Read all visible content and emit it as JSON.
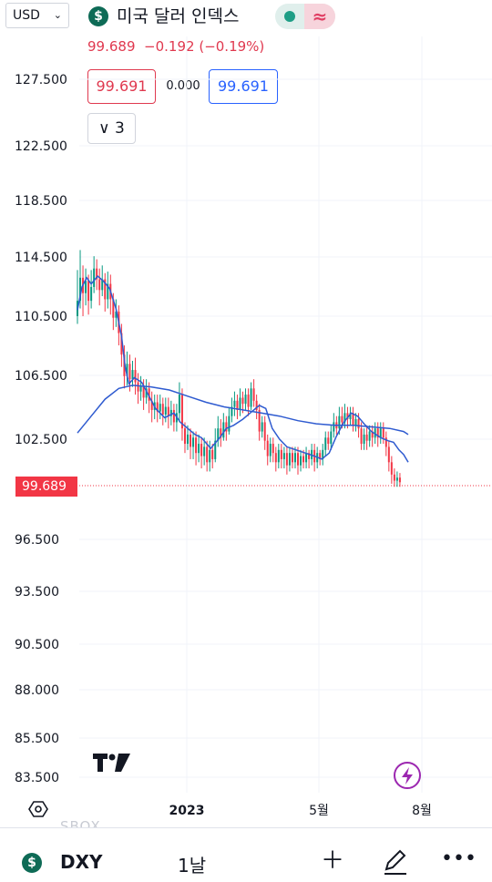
{
  "header": {
    "currency": "USD",
    "symbol_badge": "$",
    "title": "미국 달러 인덱스",
    "status_wave": "≈"
  },
  "quote": {
    "last": "99.689",
    "change": "−0.192",
    "change_pct": "(−0.19%)"
  },
  "trade": {
    "sell": "99.691",
    "spread": "0.000",
    "buy": "99.691"
  },
  "indicators_toggle": {
    "count": "3"
  },
  "chart_data": {
    "type": "candlestick",
    "y_ticks": [
      "127.500",
      "122.500",
      "118.500",
      "114.500",
      "110.500",
      "106.500",
      "102.500",
      "96.500",
      "93.500",
      "90.500",
      "88.000",
      "85.500",
      "83.500"
    ],
    "x_ticks": [
      "2023",
      "5월",
      "8월"
    ],
    "current_price_label": "99.689",
    "ma_fast": [
      [
        0,
        110.9
      ],
      [
        5,
        112.4
      ],
      [
        10,
        113.0
      ],
      [
        15,
        112.6
      ],
      [
        22,
        113.1
      ],
      [
        28,
        112.8
      ],
      [
        35,
        112.3
      ],
      [
        42,
        111.0
      ],
      [
        48,
        109.2
      ],
      [
        52,
        107.2
      ],
      [
        56,
        106.1
      ],
      [
        62,
        106.5
      ],
      [
        70,
        106.2
      ],
      [
        78,
        105.3
      ],
      [
        85,
        104.5
      ],
      [
        95,
        103.9
      ],
      [
        105,
        104.2
      ],
      [
        112,
        103.6
      ],
      [
        120,
        103.2
      ],
      [
        128,
        102.8
      ],
      [
        135,
        102.6
      ],
      [
        145,
        101.9
      ],
      [
        155,
        102.6
      ],
      [
        162,
        103.2
      ],
      [
        170,
        103.4
      ],
      [
        180,
        103.8
      ],
      [
        190,
        104.3
      ],
      [
        198,
        104.7
      ],
      [
        205,
        104.5
      ],
      [
        212,
        103.2
      ],
      [
        220,
        102.5
      ],
      [
        228,
        102.0
      ],
      [
        238,
        101.8
      ],
      [
        248,
        101.6
      ],
      [
        258,
        101.4
      ],
      [
        266,
        101.2
      ],
      [
        274,
        101.6
      ],
      [
        282,
        102.7
      ],
      [
        290,
        103.6
      ],
      [
        298,
        104.2
      ],
      [
        305,
        104.0
      ],
      [
        312,
        103.5
      ],
      [
        320,
        103.0
      ],
      [
        330,
        102.6
      ],
      [
        338,
        102.4
      ],
      [
        344,
        102.3
      ],
      [
        350,
        101.8
      ],
      [
        355,
        101.5
      ],
      [
        360,
        101.0
      ]
    ],
    "ma_slow": [
      [
        0,
        102.9
      ],
      [
        15,
        104.0
      ],
      [
        30,
        105.1
      ],
      [
        45,
        105.8
      ],
      [
        60,
        106.0
      ],
      [
        80,
        105.9
      ],
      [
        100,
        105.7
      ],
      [
        120,
        105.3
      ],
      [
        140,
        104.9
      ],
      [
        160,
        104.6
      ],
      [
        180,
        104.4
      ],
      [
        200,
        104.2
      ],
      [
        220,
        104.0
      ],
      [
        240,
        103.7
      ],
      [
        260,
        103.5
      ],
      [
        280,
        103.4
      ],
      [
        300,
        103.4
      ],
      [
        320,
        103.3
      ],
      [
        340,
        103.2
      ],
      [
        355,
        103.0
      ],
      [
        360,
        102.8
      ]
    ],
    "candles": [
      [
        0,
        110.5,
        111.5,
        113.5,
        110.0
      ],
      [
        3,
        111.5,
        113.0,
        114.8,
        111.0
      ],
      [
        6,
        113.0,
        112.0,
        113.8,
        110.5
      ],
      [
        9,
        112.0,
        112.8,
        113.6,
        111.2
      ],
      [
        12,
        112.8,
        111.5,
        113.2,
        110.6
      ],
      [
        15,
        111.5,
        112.4,
        113.5,
        111.0
      ],
      [
        18,
        112.4,
        113.6,
        114.4,
        112.0
      ],
      [
        21,
        113.6,
        112.9,
        114.2,
        112.2
      ],
      [
        24,
        112.9,
        112.2,
        113.6,
        111.2
      ],
      [
        27,
        112.2,
        112.9,
        113.8,
        111.8
      ],
      [
        30,
        112.9,
        111.6,
        113.3,
        110.8
      ],
      [
        33,
        111.6,
        112.6,
        113.4,
        111.0
      ],
      [
        36,
        112.6,
        111.6,
        113.2,
        110.6
      ],
      [
        39,
        111.6,
        110.4,
        112.0,
        109.6
      ],
      [
        42,
        110.4,
        110.8,
        111.6,
        109.8
      ],
      [
        45,
        110.8,
        109.4,
        111.2,
        108.6
      ],
      [
        48,
        109.4,
        108.0,
        110.0,
        107.2
      ],
      [
        51,
        108.0,
        106.6,
        108.6,
        105.8
      ],
      [
        54,
        106.6,
        107.4,
        108.2,
        106.0
      ],
      [
        57,
        107.4,
        106.4,
        108.0,
        105.6
      ],
      [
        60,
        106.4,
        107.0,
        107.6,
        105.9
      ],
      [
        63,
        107.0,
        106.2,
        107.8,
        105.4
      ],
      [
        66,
        106.2,
        105.6,
        106.8,
        104.8
      ],
      [
        69,
        105.6,
        106.0,
        106.6,
        105.0
      ],
      [
        72,
        106.0,
        105.2,
        106.4,
        104.4
      ],
      [
        75,
        105.2,
        105.8,
        106.4,
        104.8
      ],
      [
        78,
        105.8,
        105.0,
        106.2,
        104.2
      ],
      [
        81,
        105.0,
        104.4,
        105.6,
        103.6
      ],
      [
        84,
        104.4,
        104.9,
        105.4,
        103.8
      ],
      [
        87,
        104.9,
        104.3,
        105.4,
        103.6
      ],
      [
        90,
        104.3,
        104.8,
        105.4,
        103.8
      ],
      [
        93,
        104.8,
        104.1,
        105.2,
        103.4
      ],
      [
        96,
        104.1,
        104.6,
        105.2,
        103.6
      ],
      [
        99,
        104.6,
        104.0,
        105.2,
        103.2
      ],
      [
        102,
        104.0,
        104.4,
        105.0,
        103.4
      ],
      [
        105,
        104.4,
        103.6,
        104.8,
        103.0
      ],
      [
        108,
        103.6,
        104.2,
        104.8,
        103.0
      ],
      [
        111,
        104.2,
        105.4,
        106.2,
        103.6
      ],
      [
        114,
        105.4,
        103.2,
        105.8,
        102.4
      ],
      [
        117,
        103.2,
        102.2,
        103.6,
        101.6
      ],
      [
        120,
        102.2,
        102.8,
        103.4,
        101.8
      ],
      [
        123,
        102.8,
        102.0,
        103.2,
        101.2
      ],
      [
        126,
        102.0,
        102.6,
        103.0,
        101.2
      ],
      [
        129,
        102.6,
        101.6,
        103.0,
        100.8
      ],
      [
        132,
        101.6,
        102.2,
        102.8,
        101.0
      ],
      [
        135,
        102.2,
        101.4,
        102.6,
        100.6
      ],
      [
        138,
        101.4,
        102.0,
        102.6,
        100.8
      ],
      [
        141,
        102.0,
        101.0,
        102.4,
        100.4
      ],
      [
        144,
        101.0,
        101.8,
        102.4,
        100.4
      ],
      [
        147,
        101.8,
        101.2,
        102.2,
        100.6
      ],
      [
        150,
        101.2,
        102.4,
        103.2,
        101.0
      ],
      [
        153,
        102.4,
        103.2,
        104.0,
        102.0
      ],
      [
        156,
        103.2,
        102.6,
        103.8,
        102.0
      ],
      [
        159,
        102.6,
        103.6,
        104.2,
        102.4
      ],
      [
        162,
        103.6,
        103.0,
        104.0,
        102.4
      ],
      [
        165,
        103.0,
        104.0,
        104.6,
        102.8
      ],
      [
        168,
        104.0,
        104.6,
        105.2,
        103.6
      ],
      [
        171,
        104.6,
        105.0,
        105.6,
        104.0
      ],
      [
        174,
        105.0,
        104.4,
        105.4,
        103.8
      ],
      [
        177,
        104.4,
        105.2,
        105.8,
        104.0
      ],
      [
        180,
        105.2,
        104.8,
        105.6,
        104.2
      ],
      [
        183,
        104.8,
        105.4,
        105.8,
        104.4
      ],
      [
        186,
        105.4,
        104.6,
        105.8,
        104.0
      ],
      [
        189,
        104.6,
        105.8,
        106.2,
        104.4
      ],
      [
        192,
        105.8,
        105.0,
        106.4,
        104.6
      ],
      [
        195,
        105.0,
        104.4,
        105.4,
        103.8
      ],
      [
        198,
        104.4,
        103.0,
        104.8,
        102.4
      ],
      [
        201,
        103.0,
        103.6,
        104.0,
        102.6
      ],
      [
        204,
        103.6,
        102.4,
        104.0,
        101.8
      ],
      [
        207,
        102.4,
        101.4,
        102.8,
        100.8
      ],
      [
        210,
        101.4,
        102.2,
        102.6,
        101.0
      ],
      [
        213,
        102.2,
        101.6,
        102.6,
        101.0
      ],
      [
        216,
        101.6,
        101.0,
        102.0,
        100.4
      ],
      [
        219,
        101.0,
        101.8,
        102.2,
        100.6
      ],
      [
        222,
        101.8,
        101.2,
        102.2,
        100.6
      ],
      [
        225,
        101.2,
        101.6,
        102.0,
        100.6
      ],
      [
        228,
        101.6,
        100.8,
        102.0,
        100.2
      ],
      [
        231,
        100.8,
        101.6,
        102.0,
        100.4
      ],
      [
        234,
        101.6,
        101.0,
        102.0,
        100.6
      ],
      [
        237,
        101.0,
        101.6,
        102.0,
        100.6
      ],
      [
        240,
        101.6,
        100.8,
        102.0,
        100.2
      ],
      [
        243,
        100.8,
        101.4,
        101.8,
        100.4
      ],
      [
        246,
        101.4,
        101.0,
        101.8,
        100.6
      ],
      [
        249,
        101.0,
        101.6,
        102.0,
        100.6
      ],
      [
        252,
        101.6,
        101.2,
        101.8,
        100.6
      ],
      [
        255,
        101.2,
        101.8,
        102.2,
        100.8
      ],
      [
        258,
        101.8,
        101.0,
        102.2,
        100.4
      ],
      [
        261,
        101.0,
        101.6,
        102.0,
        100.6
      ],
      [
        264,
        101.6,
        101.2,
        101.8,
        100.8
      ],
      [
        267,
        101.2,
        101.8,
        102.2,
        100.8
      ],
      [
        270,
        101.8,
        102.6,
        103.0,
        101.4
      ],
      [
        273,
        102.6,
        102.2,
        103.0,
        101.8
      ],
      [
        276,
        102.2,
        103.0,
        103.4,
        101.8
      ],
      [
        279,
        103.0,
        103.6,
        104.2,
        102.6
      ],
      [
        282,
        103.6,
        103.2,
        104.0,
        102.8
      ],
      [
        285,
        103.2,
        104.0,
        104.6,
        102.8
      ],
      [
        288,
        104.0,
        103.6,
        104.6,
        103.2
      ],
      [
        291,
        103.6,
        104.2,
        104.8,
        103.2
      ],
      [
        294,
        104.2,
        103.8,
        104.6,
        103.2
      ],
      [
        297,
        103.8,
        104.2,
        104.6,
        103.4
      ],
      [
        300,
        104.2,
        103.4,
        104.6,
        103.0
      ],
      [
        303,
        103.4,
        103.8,
        104.2,
        103.0
      ],
      [
        306,
        103.8,
        103.2,
        104.2,
        102.6
      ],
      [
        309,
        103.2,
        102.2,
        103.6,
        101.8
      ],
      [
        312,
        102.2,
        102.8,
        103.2,
        101.8
      ],
      [
        315,
        102.8,
        102.4,
        103.4,
        101.8
      ],
      [
        318,
        102.4,
        103.0,
        103.4,
        102.0
      ],
      [
        321,
        103.0,
        102.6,
        103.4,
        102.0
      ],
      [
        324,
        102.6,
        103.2,
        103.6,
        102.2
      ],
      [
        327,
        103.2,
        102.6,
        103.6,
        102.0
      ],
      [
        330,
        102.6,
        103.2,
        103.6,
        102.2
      ],
      [
        333,
        103.2,
        102.6,
        103.6,
        102.2
      ],
      [
        336,
        102.6,
        102.0,
        103.0,
        101.4
      ],
      [
        339,
        102.0,
        101.0,
        102.4,
        100.4
      ],
      [
        342,
        101.0,
        100.2,
        101.4,
        99.6
      ],
      [
        345,
        100.2,
        99.8,
        100.6,
        99.4
      ],
      [
        348,
        99.8,
        100.0,
        100.4,
        99.4
      ],
      [
        351,
        100.0,
        99.7,
        100.3,
        99.4
      ]
    ]
  }
}
